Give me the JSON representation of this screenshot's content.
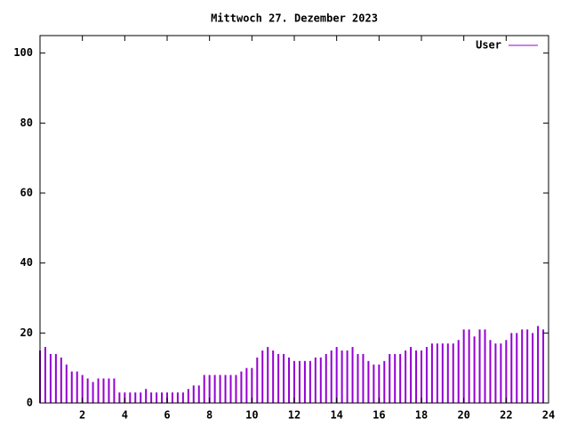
{
  "chart_data": {
    "type": "impulse",
    "title": "Mittwoch 27. Dezember 2023",
    "series": [
      {
        "name": "User",
        "color": "#9400d3",
        "x": [
          0,
          0.25,
          0.5,
          0.75,
          1,
          1.25,
          1.5,
          1.75,
          2,
          2.25,
          2.5,
          2.75,
          3,
          3.25,
          3.5,
          3.75,
          4,
          4.25,
          4.5,
          4.75,
          5,
          5.25,
          5.5,
          5.75,
          6,
          6.25,
          6.5,
          6.75,
          7,
          7.25,
          7.5,
          7.75,
          8,
          8.25,
          8.5,
          8.75,
          9,
          9.25,
          9.5,
          9.75,
          10,
          10.25,
          10.5,
          10.75,
          11,
          11.25,
          11.5,
          11.75,
          12,
          12.25,
          12.5,
          12.75,
          13,
          13.25,
          13.5,
          13.75,
          14,
          14.25,
          14.5,
          14.75,
          15,
          15.25,
          15.5,
          15.75,
          16,
          16.25,
          16.5,
          16.75,
          17,
          17.25,
          17.5,
          17.75,
          18,
          18.25,
          18.5,
          18.75,
          19,
          19.25,
          19.5,
          19.75,
          20,
          20.25,
          20.5,
          20.75,
          21,
          21.25,
          21.5,
          21.75,
          22,
          22.25,
          22.5,
          22.75,
          23,
          23.25,
          23.5,
          23.75
        ],
        "values": [
          15,
          16,
          14,
          14,
          13,
          11,
          9,
          9,
          8,
          7,
          6,
          7,
          7,
          7,
          7,
          3,
          3,
          3,
          3,
          3,
          4,
          3,
          3,
          3,
          3,
          3,
          3,
          3,
          4,
          5,
          5,
          8,
          8,
          8,
          8,
          8,
          8,
          8,
          9,
          10,
          10,
          13,
          15,
          16,
          15,
          14,
          14,
          13,
          12,
          12,
          12,
          12,
          13,
          13,
          14,
          15,
          16,
          15,
          15,
          16,
          14,
          14,
          12,
          11,
          11,
          12,
          14,
          14,
          14,
          15,
          16,
          15,
          15,
          16,
          17,
          17,
          17,
          17,
          17,
          18,
          21,
          21,
          19,
          21,
          21,
          18,
          17,
          17,
          18,
          20,
          20,
          21,
          21,
          20,
          22,
          21
        ]
      }
    ],
    "xlim": [
      0,
      24
    ],
    "xticks": [
      2,
      4,
      6,
      8,
      10,
      12,
      14,
      16,
      18,
      20,
      22,
      24
    ],
    "ylim": [
      0,
      105
    ],
    "yticks": [
      0,
      20,
      40,
      60,
      80,
      100
    ],
    "legend": "top-right"
  }
}
